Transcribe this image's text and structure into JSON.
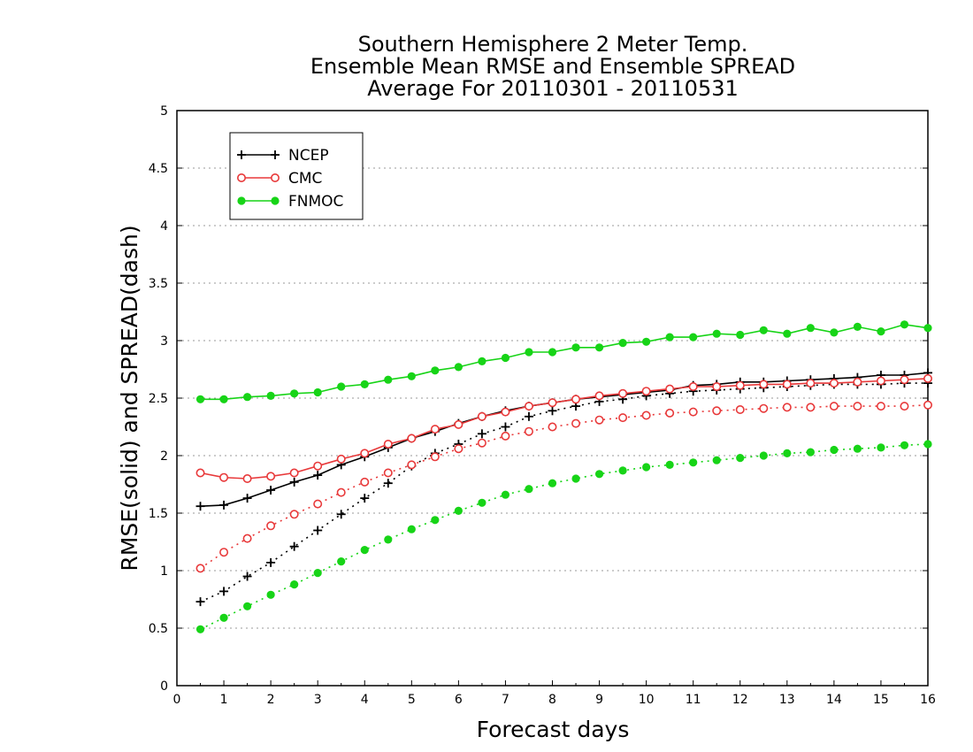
{
  "chart_data": {
    "type": "line",
    "title_lines": [
      "Southern Hemisphere 2 Meter Temp.",
      "Ensemble Mean RMSE and Ensemble SPREAD",
      "Average For 20110301 - 20110531"
    ],
    "xlabel": "Forecast days",
    "ylabel": "RMSE(solid) and SPREAD(dash)",
    "xlim": [
      0,
      16
    ],
    "ylim": [
      0,
      5
    ],
    "xticks": [
      "0",
      "1",
      "2",
      "3",
      "4",
      "5",
      "6",
      "7",
      "8",
      "9",
      "10",
      "11",
      "12",
      "13",
      "14",
      "15",
      "16"
    ],
    "yticks": [
      "0",
      "0.5",
      "1",
      "1.5",
      "2",
      "2.5",
      "3",
      "3.5",
      "4",
      "4.5",
      "5"
    ],
    "grid": "horizontal dotted",
    "legend_position": "top-left",
    "x": [
      0.5,
      1,
      1.5,
      2,
      2.5,
      3,
      3.5,
      4,
      4.5,
      5,
      5.5,
      6,
      6.5,
      7,
      7.5,
      8,
      8.5,
      9,
      9.5,
      10,
      10.5,
      11,
      11.5,
      12,
      12.5,
      13,
      13.5,
      14,
      14.5,
      15,
      15.5,
      16
    ],
    "series": [
      {
        "name": "NCEP",
        "color": "#000000",
        "marker": "plus",
        "legend": true,
        "rmse": [
          1.56,
          1.57,
          1.63,
          1.7,
          1.77,
          1.83,
          1.92,
          1.99,
          2.07,
          2.15,
          2.21,
          2.28,
          2.34,
          2.39,
          2.43,
          2.46,
          2.49,
          2.51,
          2.53,
          2.55,
          2.57,
          2.61,
          2.62,
          2.64,
          2.64,
          2.65,
          2.66,
          2.67,
          2.68,
          2.7,
          2.7,
          2.72
        ],
        "spread": [
          0.73,
          0.82,
          0.95,
          1.07,
          1.21,
          1.35,
          1.49,
          1.63,
          1.76,
          1.91,
          2.02,
          2.1,
          2.19,
          2.25,
          2.34,
          2.39,
          2.43,
          2.47,
          2.49,
          2.52,
          2.54,
          2.56,
          2.57,
          2.58,
          2.59,
          2.6,
          2.61,
          2.62,
          2.62,
          2.62,
          2.63,
          2.63
        ]
      },
      {
        "name": "CMC",
        "color": "#e8393a",
        "marker": "circle",
        "legend": true,
        "rmse": [
          1.85,
          1.81,
          1.8,
          1.82,
          1.85,
          1.91,
          1.97,
          2.02,
          2.1,
          2.15,
          2.23,
          2.27,
          2.34,
          2.38,
          2.43,
          2.46,
          2.49,
          2.52,
          2.54,
          2.56,
          2.58,
          2.6,
          2.6,
          2.61,
          2.62,
          2.62,
          2.63,
          2.63,
          2.64,
          2.65,
          2.66,
          2.67
        ],
        "spread": [
          1.02,
          1.16,
          1.28,
          1.39,
          1.49,
          1.58,
          1.68,
          1.77,
          1.85,
          1.92,
          1.99,
          2.06,
          2.11,
          2.17,
          2.21,
          2.25,
          2.28,
          2.31,
          2.33,
          2.35,
          2.37,
          2.38,
          2.39,
          2.4,
          2.41,
          2.42,
          2.42,
          2.43,
          2.43,
          2.43,
          2.43,
          2.44
        ]
      },
      {
        "name": "FNMOC",
        "color": "#17d417",
        "marker": "dot",
        "legend": true,
        "rmse": [
          2.49,
          2.49,
          2.51,
          2.52,
          2.54,
          2.55,
          2.6,
          2.62,
          2.66,
          2.69,
          2.74,
          2.77,
          2.82,
          2.85,
          2.9,
          2.9,
          2.94,
          2.94,
          2.98,
          2.99,
          3.03,
          3.03,
          3.06,
          3.05,
          3.09,
          3.06,
          3.11,
          3.07,
          3.12,
          3.08,
          3.14,
          3.11
        ],
        "spread": [
          0.49,
          0.59,
          0.69,
          0.79,
          0.88,
          0.98,
          1.08,
          1.18,
          1.27,
          1.36,
          1.44,
          1.52,
          1.59,
          1.66,
          1.71,
          1.76,
          1.8,
          1.84,
          1.87,
          1.9,
          1.92,
          1.94,
          1.96,
          1.98,
          2.0,
          2.02,
          2.03,
          2.05,
          2.06,
          2.07,
          2.09,
          2.1
        ]
      }
    ]
  }
}
